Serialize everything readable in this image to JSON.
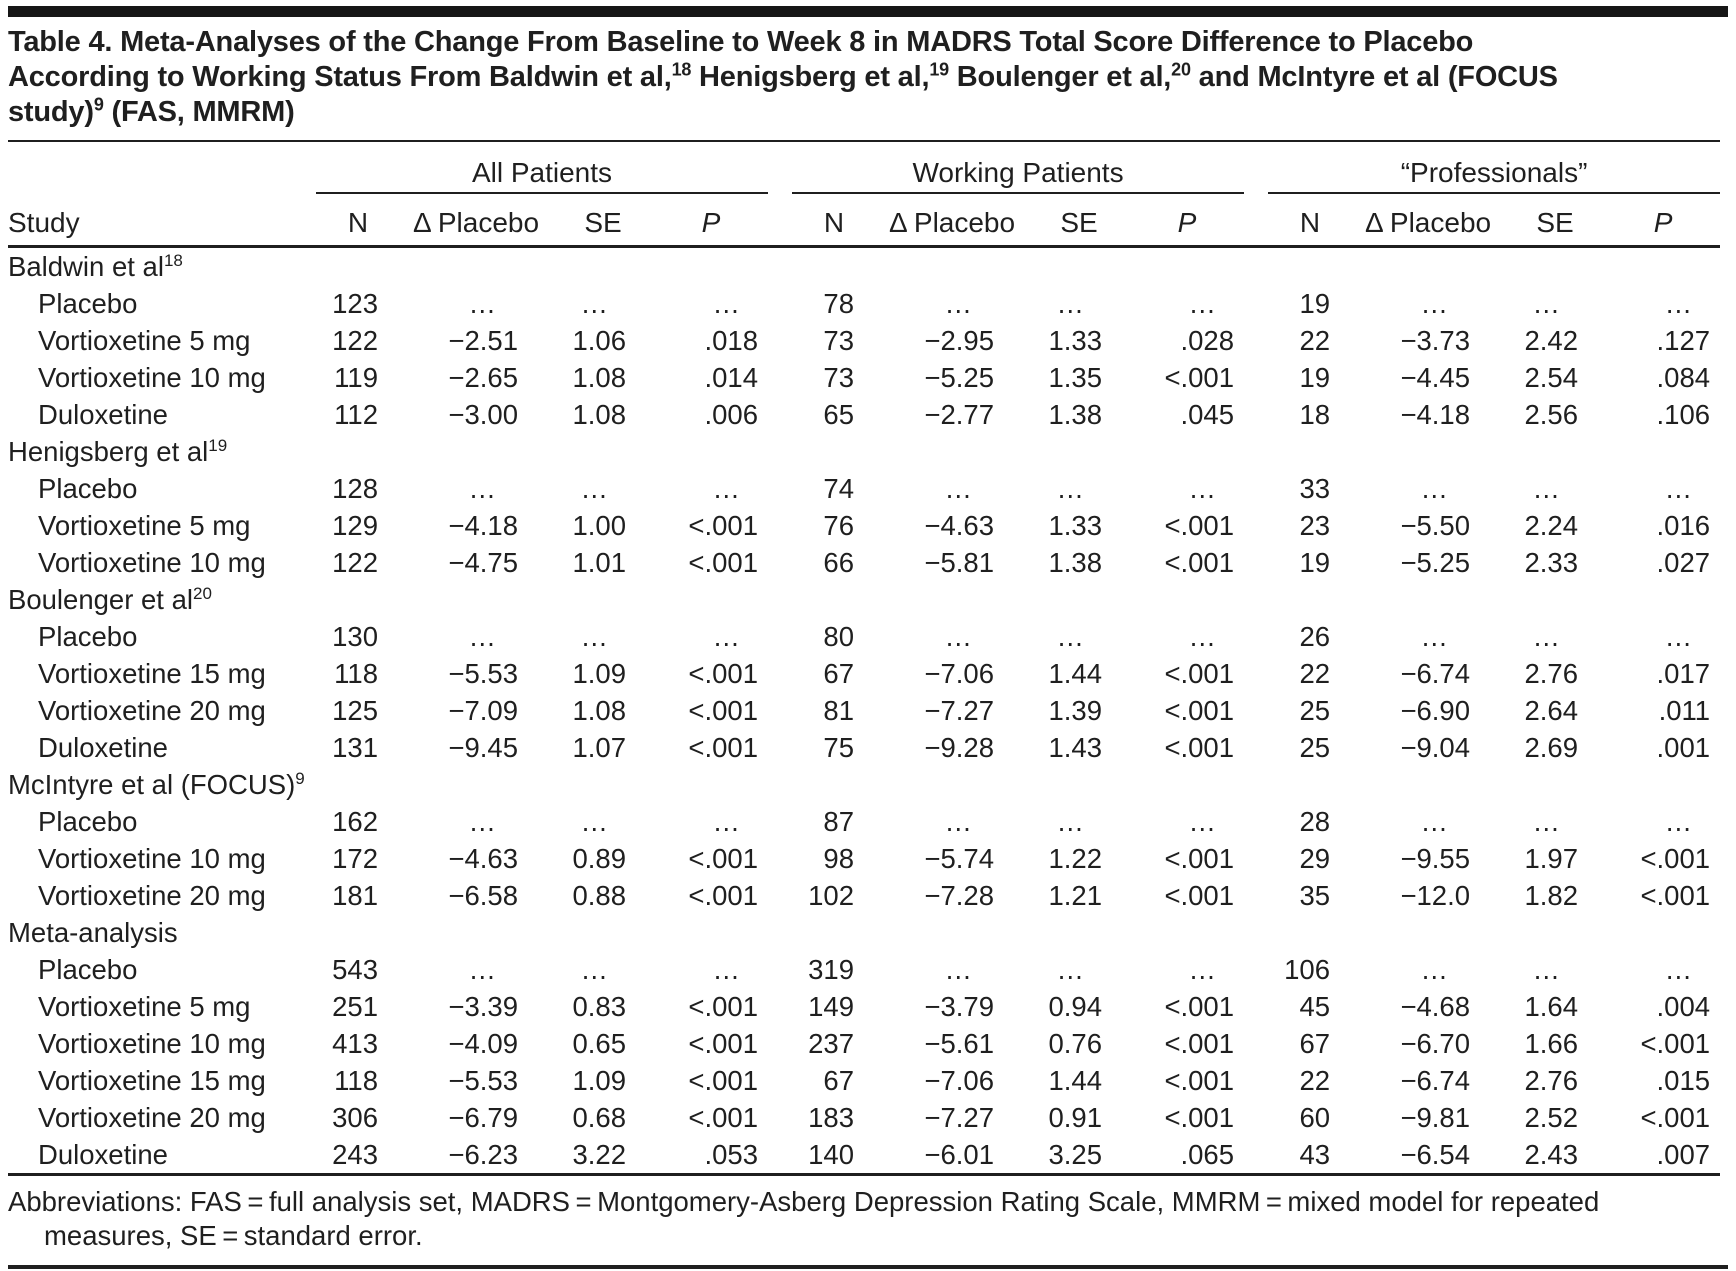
{
  "title": {
    "segments": [
      {
        "text": "Table 4. Meta-Analyses of the Change From Baseline to Week 8 in MADRS Total Score Difference to Placebo According to Working Status From Baldwin et al,"
      },
      {
        "sup": "18"
      },
      {
        "text": " Henigsberg et al,"
      },
      {
        "sup": "19"
      },
      {
        "text": " Boulenger et al,"
      },
      {
        "sup": "20"
      },
      {
        "text": " and McIntyre et al (FOCUS study)"
      },
      {
        "sup": "9"
      },
      {
        "text": " (FAS, MMRM)"
      }
    ]
  },
  "header": {
    "study_label": "Study",
    "groups": [
      {
        "label": "All Patients"
      },
      {
        "label": "Working Patients"
      },
      {
        "label": "“Professionals”"
      }
    ],
    "columns": [
      {
        "label": "N",
        "italic": false
      },
      {
        "label": "Δ Placebo",
        "italic": false
      },
      {
        "label": "SE",
        "italic": false
      },
      {
        "label": "P",
        "italic": true
      }
    ]
  },
  "sections": [
    {
      "label": "Baldwin et al",
      "sup": "18",
      "rows": [
        {
          "label": "Placebo",
          "cells": [
            "123",
            "…",
            "…",
            "…",
            "78",
            "…",
            "…",
            "…",
            "19",
            "…",
            "…",
            "…"
          ]
        },
        {
          "label": "Vortioxetine 5 mg",
          "cells": [
            "122",
            "−2.51",
            "1.06",
            ".018",
            "73",
            "−2.95",
            "1.33",
            ".028",
            "22",
            "−3.73",
            "2.42",
            ".127"
          ]
        },
        {
          "label": "Vortioxetine 10 mg",
          "cells": [
            "119",
            "−2.65",
            "1.08",
            ".014",
            "73",
            "−5.25",
            "1.35",
            "<.001",
            "19",
            "−4.45",
            "2.54",
            ".084"
          ]
        },
        {
          "label": "Duloxetine",
          "cells": [
            "112",
            "−3.00",
            "1.08",
            ".006",
            "65",
            "−2.77",
            "1.38",
            ".045",
            "18",
            "−4.18",
            "2.56",
            ".106"
          ]
        }
      ]
    },
    {
      "label": "Henigsberg et al",
      "sup": "19",
      "rows": [
        {
          "label": "Placebo",
          "cells": [
            "128",
            "…",
            "…",
            "…",
            "74",
            "…",
            "…",
            "…",
            "33",
            "…",
            "…",
            "…"
          ]
        },
        {
          "label": "Vortioxetine 5 mg",
          "cells": [
            "129",
            "−4.18",
            "1.00",
            "<.001",
            "76",
            "−4.63",
            "1.33",
            "<.001",
            "23",
            "−5.50",
            "2.24",
            ".016"
          ]
        },
        {
          "label": "Vortioxetine 10 mg",
          "cells": [
            "122",
            "−4.75",
            "1.01",
            "<.001",
            "66",
            "−5.81",
            "1.38",
            "<.001",
            "19",
            "−5.25",
            "2.33",
            ".027"
          ]
        }
      ]
    },
    {
      "label": "Boulenger et al",
      "sup": "20",
      "rows": [
        {
          "label": "Placebo",
          "cells": [
            "130",
            "…",
            "…",
            "…",
            "80",
            "…",
            "…",
            "…",
            "26",
            "…",
            "…",
            "…"
          ]
        },
        {
          "label": "Vortioxetine 15 mg",
          "cells": [
            "118",
            "−5.53",
            "1.09",
            "<.001",
            "67",
            "−7.06",
            "1.44",
            "<.001",
            "22",
            "−6.74",
            "2.76",
            ".017"
          ]
        },
        {
          "label": "Vortioxetine 20 mg",
          "cells": [
            "125",
            "−7.09",
            "1.08",
            "<.001",
            "81",
            "−7.27",
            "1.39",
            "<.001",
            "25",
            "−6.90",
            "2.64",
            ".011"
          ]
        },
        {
          "label": "Duloxetine",
          "cells": [
            "131",
            "−9.45",
            "1.07",
            "<.001",
            "75",
            "−9.28",
            "1.43",
            "<.001",
            "25",
            "−9.04",
            "2.69",
            ".001"
          ]
        }
      ]
    },
    {
      "label": "McIntyre et al (FOCUS)",
      "sup": "9",
      "rows": [
        {
          "label": "Placebo",
          "cells": [
            "162",
            "…",
            "…",
            "…",
            "87",
            "…",
            "…",
            "…",
            "28",
            "…",
            "…",
            "…"
          ]
        },
        {
          "label": "Vortioxetine 10 mg",
          "cells": [
            "172",
            "−4.63",
            "0.89",
            "<.001",
            "98",
            "−5.74",
            "1.22",
            "<.001",
            "29",
            "−9.55",
            "1.97",
            "<.001"
          ]
        },
        {
          "label": "Vortioxetine 20 mg",
          "cells": [
            "181",
            "−6.58",
            "0.88",
            "<.001",
            "102",
            "−7.28",
            "1.21",
            "<.001",
            "35",
            "−12.0",
            "1.82",
            "<.001"
          ]
        }
      ]
    },
    {
      "label": "Meta-analysis",
      "sup": "",
      "rows": [
        {
          "label": "Placebo",
          "cells": [
            "543",
            "…",
            "…",
            "…",
            "319",
            "…",
            "…",
            "…",
            "106",
            "…",
            "…",
            "…"
          ]
        },
        {
          "label": "Vortioxetine 5 mg",
          "cells": [
            "251",
            "−3.39",
            "0.83",
            "<.001",
            "149",
            "−3.79",
            "0.94",
            "<.001",
            "45",
            "−4.68",
            "1.64",
            ".004"
          ]
        },
        {
          "label": "Vortioxetine 10 mg",
          "cells": [
            "413",
            "−4.09",
            "0.65",
            "<.001",
            "237",
            "−5.61",
            "0.76",
            "<.001",
            "67",
            "−6.70",
            "1.66",
            "<.001"
          ]
        },
        {
          "label": "Vortioxetine 15 mg",
          "cells": [
            "118",
            "−5.53",
            "1.09",
            "<.001",
            "67",
            "−7.06",
            "1.44",
            "<.001",
            "22",
            "−6.74",
            "2.76",
            ".015"
          ]
        },
        {
          "label": "Vortioxetine 20 mg",
          "cells": [
            "306",
            "−6.79",
            "0.68",
            "<.001",
            "183",
            "−7.27",
            "0.91",
            "<.001",
            "60",
            "−9.81",
            "2.52",
            "<.001"
          ]
        },
        {
          "label": "Duloxetine",
          "cells": [
            "243",
            "−6.23",
            "3.22",
            ".053",
            "140",
            "−6.01",
            "3.25",
            ".065",
            "43",
            "−6.54",
            "2.43",
            ".007"
          ]
        }
      ]
    }
  ],
  "footnote": "Abbreviations: FAS = full analysis set, MADRS = Montgomery-Asberg Depression Rating Scale, MMRM = mixed model for repeated measures, SE = standard error."
}
